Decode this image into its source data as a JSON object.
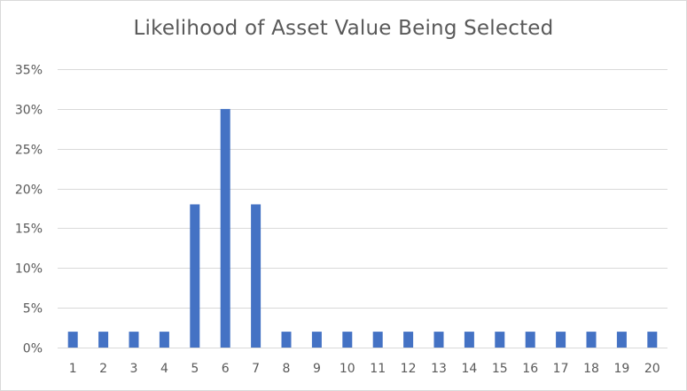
{
  "chart_data": {
    "type": "bar",
    "title": "Likelihood of Asset Value Being Selected",
    "xlabel": "",
    "ylabel": "",
    "categories": [
      "1",
      "2",
      "3",
      "4",
      "5",
      "6",
      "7",
      "8",
      "9",
      "10",
      "11",
      "12",
      "13",
      "14",
      "15",
      "16",
      "17",
      "18",
      "19",
      "20"
    ],
    "values": [
      2,
      2,
      2,
      2,
      18,
      30,
      18,
      2,
      2,
      2,
      2,
      2,
      2,
      2,
      2,
      2,
      2,
      2,
      2,
      2
    ],
    "value_unit": "%",
    "ylim": [
      0,
      35
    ],
    "y_ticks": [
      0,
      5,
      10,
      15,
      20,
      25,
      30,
      35
    ],
    "y_tick_labels": [
      "0%",
      "5%",
      "10%",
      "15%",
      "20%",
      "25%",
      "30%",
      "35%"
    ],
    "grid": true,
    "legend": "none",
    "colors": {
      "bar": "#4472c4",
      "grid": "#d9d9d9",
      "text": "#595959"
    }
  }
}
